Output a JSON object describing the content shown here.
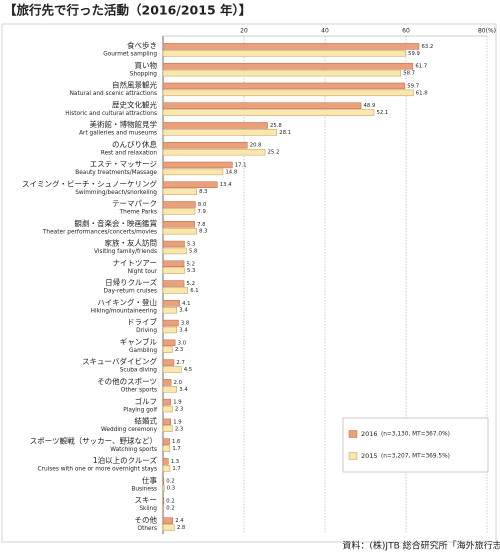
{
  "chart_data": {
    "type": "hbar",
    "title": "【旅行先で行った活動（2016/2015 年）】",
    "source": "資料：(株)JTB 総合研究所「海外旅行志向調査」",
    "categories": [
      "食べ歩き",
      "買い物",
      "自然風景観光",
      "歴史文化観光",
      "美術館・博物館見学",
      "のんびり休息",
      "エステ・マッサージ",
      "スイミング・ビーチ・シュノーケリング",
      "テーマパーク",
      "観劇・音楽会・映画鑑賞",
      "家族・友人訪問",
      "ナイトツアー",
      "日帰りクルーズ",
      "ハイキング・登山",
      "ドライブ",
      "ギャンブル",
      "スキューバダイビング",
      "その他のスポーツ",
      "ゴルフ",
      "結婚式",
      "スポーツ観戦（サッカー、野球など）",
      "1泊以上のクルーズ",
      "仕事",
      "スキー",
      "その他"
    ],
    "categories_en": [
      "Gourmet sampling",
      "Shopping",
      "Natural and scenic attractions",
      "Historic and cultural attractions",
      "Art galleries and museums",
      "Rest and relaxation",
      "Beauty treatments/Massage",
      "Swimming/beach/snorkeling",
      "Theme Parks",
      "Theater performances/concerts/movies",
      "Visiting family/friends",
      "Night tour",
      "Day-return cruises",
      "Hiking/mountaineering",
      "Driving",
      "Gambling",
      "Scuba diving",
      "Other sports",
      "Playing golf",
      "Wedding ceremony",
      "Watching sports",
      "Cruises with one or more overnight stays",
      "Business",
      "Skiing",
      "Others"
    ],
    "series": [
      {
        "name": "2016",
        "note": "(n=3,130, MT=367.0%)",
        "color": "#eba07c",
        "stroke": "#b8643e",
        "values": [
          63.2,
          61.7,
          59.7,
          48.9,
          25.8,
          20.8,
          17.1,
          13.4,
          8.0,
          7.8,
          5.3,
          5.2,
          5.2,
          4.1,
          3.8,
          3.0,
          2.7,
          2.0,
          1.9,
          1.9,
          1.6,
          1.3,
          0.2,
          0.2,
          2.4
        ],
        "value_labels": [
          "63.2",
          "61.7",
          "59.7",
          "48.9",
          "25.8",
          "20.8",
          "17.1",
          "13.4",
          "8.0",
          "7.8",
          "5.3",
          "5.2",
          "5.2",
          "4.1",
          "3.8",
          "3.0",
          "2.7",
          "2.0",
          "1.9",
          "1.9",
          "1.6",
          "1.3",
          "0.2",
          "0.2",
          "2.4"
        ]
      },
      {
        "name": "2015",
        "note": "(n=3,207, MT=369.5%)",
        "color": "#fbe7ab",
        "stroke": "#b79a5a",
        "values": [
          59.9,
          58.7,
          61.8,
          52.1,
          28.1,
          25.2,
          14.8,
          8.3,
          7.9,
          8.3,
          5.8,
          5.3,
          6.1,
          3.4,
          3.4,
          2.3,
          4.5,
          3.4,
          2.3,
          2.3,
          1.7,
          1.7,
          0.3,
          0.2,
          2.8
        ],
        "value_labels": [
          "59.9",
          "58.7",
          "61.8",
          "52.1",
          "28.1",
          "25.2",
          "14.8",
          "8.3",
          "7.9",
          "8.3",
          "5.8",
          "5.3",
          "6.1",
          "3.4",
          "3.4",
          "2.3",
          "4.5",
          "3.4",
          "2.3",
          "2.3",
          "1.7",
          "1.7",
          "0.3",
          "0.2",
          "2.8"
        ]
      }
    ],
    "xlim": [
      0,
      80
    ],
    "xticks": [
      20,
      40,
      60,
      {
        "value": 80,
        "label": "80(%)"
      }
    ],
    "grid": true
  }
}
